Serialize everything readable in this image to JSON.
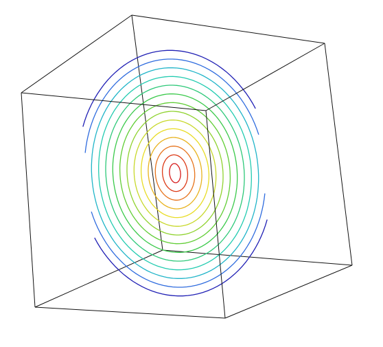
{
  "chart_data": {
    "type": "contour",
    "projection": "3d",
    "axes": "bounding-box-only",
    "grid": false,
    "colormap": "jet",
    "levels": [
      {
        "level": 0.05,
        "color": "#1f1fb4"
      },
      {
        "level": 0.1,
        "color": "#2e6bde"
      },
      {
        "level": 0.15,
        "color": "#1fb4c8"
      },
      {
        "level": 0.2,
        "color": "#22cbb0"
      },
      {
        "level": 0.25,
        "color": "#2cc878"
      },
      {
        "level": 0.3,
        "color": "#3ac94a"
      },
      {
        "level": 0.35,
        "color": "#60cd34"
      },
      {
        "level": 0.4,
        "color": "#8fd22e"
      },
      {
        "level": 0.45,
        "color": "#c7d82a"
      },
      {
        "level": 0.5,
        "color": "#e8dc24"
      },
      {
        "level": 0.55,
        "color": "#e8b21d"
      },
      {
        "level": 0.6,
        "color": "#e6721a"
      },
      {
        "level": 0.65,
        "color": "#dc3a17"
      },
      {
        "level": 0.7,
        "color": "#d61a1a"
      }
    ]
  }
}
